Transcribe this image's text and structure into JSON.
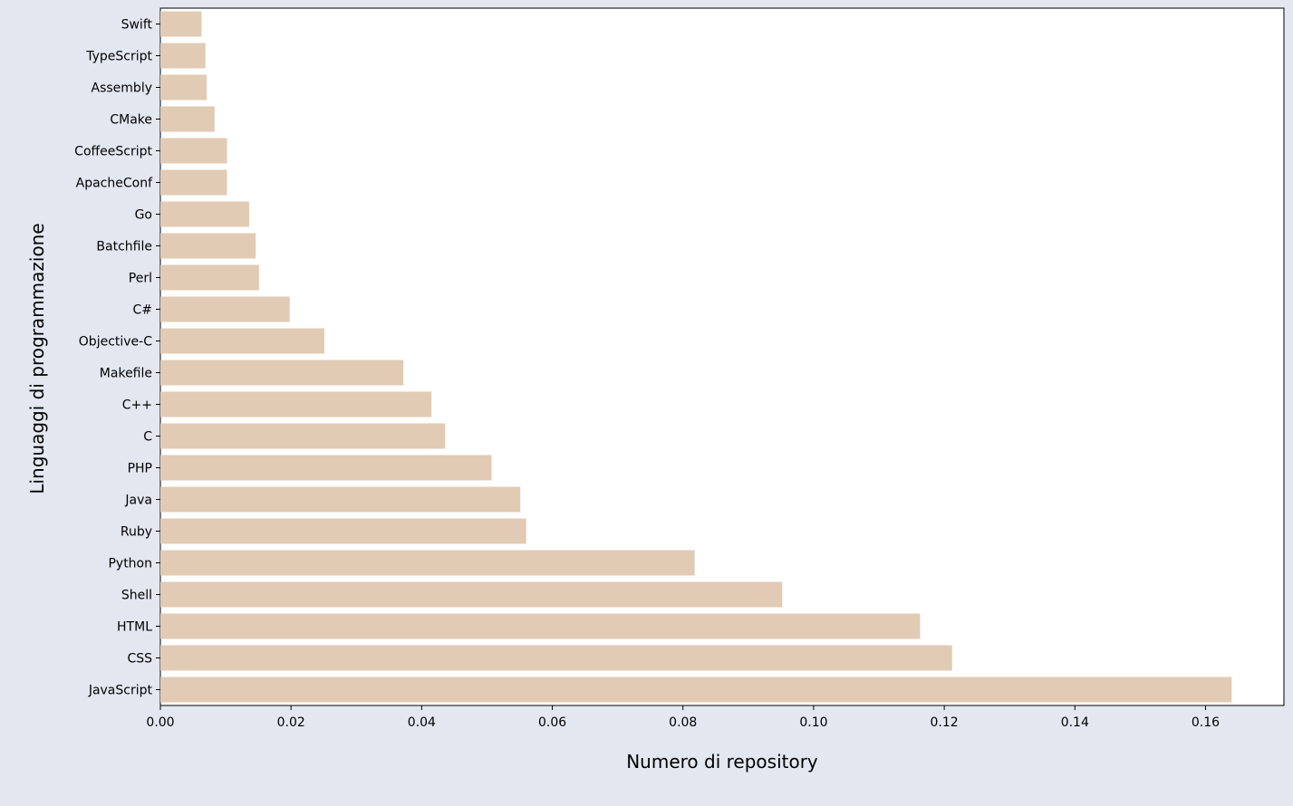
{
  "chart_data": {
    "type": "bar",
    "orientation": "horizontal",
    "title": "",
    "xlabel": "Numero di repository",
    "ylabel": "Linguaggi di programmazione",
    "xlim": [
      0,
      0.172
    ],
    "xticks": [
      "0.00",
      "0.02",
      "0.04",
      "0.06",
      "0.08",
      "0.10",
      "0.12",
      "0.14",
      "0.16"
    ],
    "grid": false,
    "legend": "none",
    "bar_color": "#e1cbb4",
    "plot_background": "#ffffff",
    "figure_background": "#e2e7f0",
    "categories": [
      "Swift",
      "TypeScript",
      "Assembly",
      "CMake",
      "CoffeeScript",
      "ApacheConf",
      "Go",
      "Batchfile",
      "Perl",
      "C#",
      "Objective-C",
      "Makefile",
      "C++",
      "C",
      "PHP",
      "Java",
      "Ruby",
      "Python",
      "Shell",
      "HTML",
      "CSS",
      "JavaScript"
    ],
    "values": [
      0.0063,
      0.0069,
      0.0071,
      0.0083,
      0.0102,
      0.0102,
      0.0136,
      0.0146,
      0.0151,
      0.0198,
      0.0251,
      0.0372,
      0.0415,
      0.0436,
      0.0507,
      0.0551,
      0.056,
      0.0818,
      0.0952,
      0.1163,
      0.1212,
      0.164
    ]
  }
}
